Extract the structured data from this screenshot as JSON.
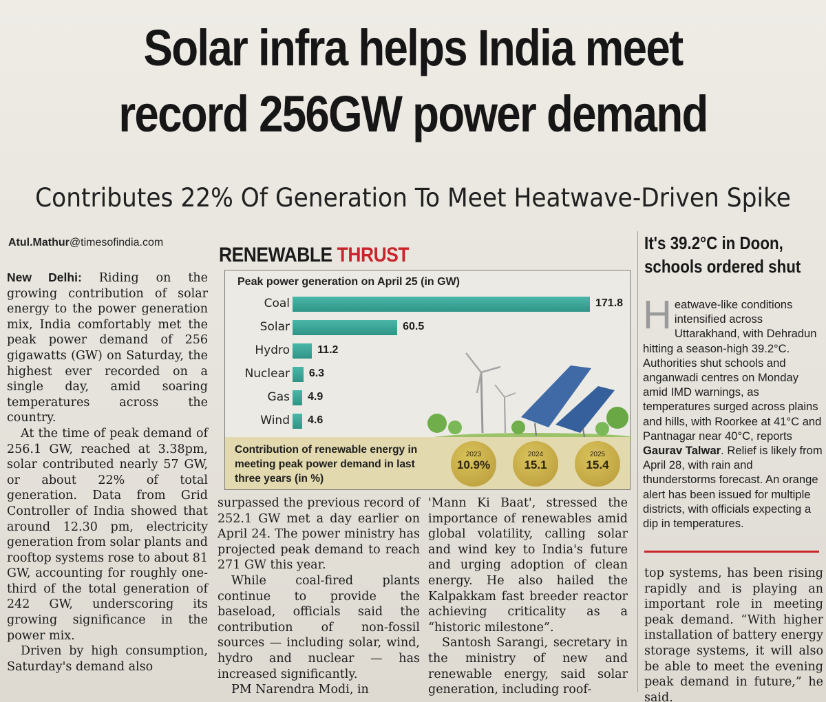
{
  "headline": {
    "line1": "Solar infra helps India meet",
    "line2": "record 256GW power demand"
  },
  "kicker": "Contributes 22% Of Generation To Meet Heatwave-Driven Spike",
  "byline": {
    "name": "Atul.Mathur",
    "domain": "@timesofindia.com"
  },
  "story": {
    "dateline": "New Delhi:",
    "col1_p1": "Riding on the growing contribution of solar energy to the power generation mix, India comfortably met the peak power demand of 256 gigawatts (GW) on Saturday, the highest ever recorded on a single day, amid soaring temperatures across the country.",
    "col1_p2": "At the time of peak demand of 256.1 GW, reached at 3.38pm, solar contributed nearly 57 GW, or about 22% of total generation. Data from Grid Controller of India showed that around 12.30 pm, electricity generation from solar plants and rooftop systems rose to about 81 GW, accounting for roughly one-third of the total generation of 242 GW, underscoring its growing significance in the power mix.",
    "col1_p3": "Driven by high consumption, Saturday's demand also",
    "col2_p1": "surpassed the previous record of 252.1 GW met a day earlier on April 24. The power ministry has projected peak demand to reach 271 GW this year.",
    "col2_p2": "While coal-fired plants continue to provide the baseload, officials said the contribution of non-fossil sources — including solar, wind, hydro and nuclear — has increased significantly.",
    "col2_p3": "PM Narendra Modi, in",
    "col3_p1": "'Mann Ki Baat', stressed the importance of renewables amid global volatility, calling solar and wind key to India's future and urging adoption of clean energy. He also hailed the Kalpakkam fast breeder reactor achieving criticality as a “historic milestone”.",
    "col3_p2": "Santosh Sarangi, secretary in the ministry of new and renewable energy, said solar generation, including roof-",
    "col4_p1": "top systems, has been rising rapidly and is playing an important role in meeting peak demand. “With higher installation of battery energy storage systems, it will also be able to meet the evening peak demand in future,” he said."
  },
  "infographic": {
    "title_a": "RENEWABLE",
    "title_b": "THRUST",
    "accent": "#c8242b",
    "bar_color": "#3aa597"
  },
  "chart_data": {
    "type": "bar",
    "title": "Peak power generation on April 25 (in GW)",
    "orientation": "horizontal",
    "categories": [
      "Coal",
      "Solar",
      "Hydro",
      "Nuclear",
      "Gas",
      "Wind"
    ],
    "values": [
      171.8,
      60.5,
      11.2,
      6.3,
      4.9,
      4.6
    ],
    "value_labels": [
      "171.8",
      "60.5",
      "11.2",
      "6.3",
      "4.9",
      "4.6"
    ]
  },
  "contribution": {
    "label": "Contribution of renewable energy in meeting peak power demand in last three years (in %)",
    "items": [
      {
        "year": "2023",
        "value": "10.9%"
      },
      {
        "year": "2024",
        "value": "15.1"
      },
      {
        "year": "2025",
        "value": "15.4"
      }
    ]
  },
  "sidebar": {
    "headline_line1": "It's 39.2°C in Doon,",
    "headline_line2": "schools ordered shut",
    "dropcap": "H",
    "body_a": "eatwave-like conditions intensified across Uttarakhand, with Dehradun hitting a season-high 39.2°C. Authorities shut schools and anganwadi centres on Monday amid IMD warnings, as temperatures surged across plains and hills, with Roorkee at 41°C and Pantnagar near 40°C, reports ",
    "reporter": "Gaurav Talwar",
    "body_b": ". Relief is likely from April 28, with rain and thunderstorms forecast. An orange alert has been issued for multiple districts, with officials expecting a dip in temperatures."
  }
}
